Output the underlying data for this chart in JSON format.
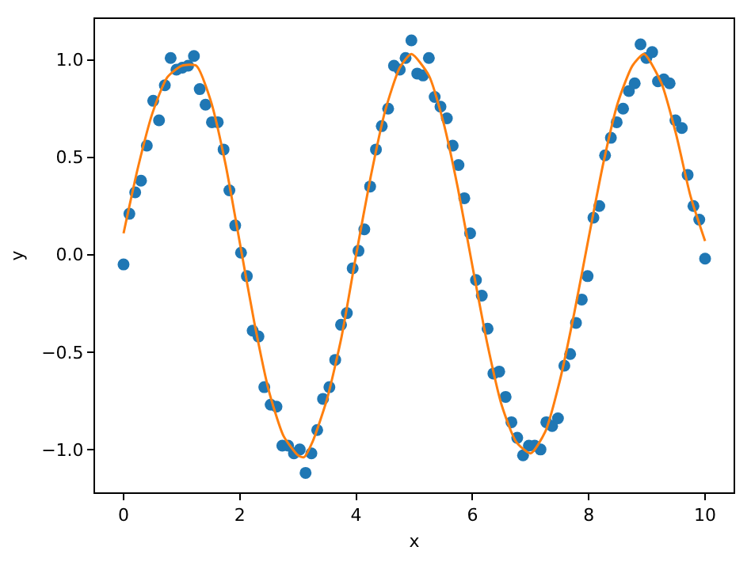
{
  "chart_data": {
    "type": "scatter",
    "xlabel": "x",
    "ylabel": "y",
    "xlim": [
      -0.49,
      10.49
    ],
    "ylim": [
      -1.22,
      1.21
    ],
    "xticks": [
      0,
      2,
      4,
      6,
      8,
      10
    ],
    "yticks": [
      {
        "value": -1,
        "label": "−1.0"
      },
      {
        "value": -0.5,
        "label": "−0.5"
      },
      {
        "value": 0,
        "label": "0.0"
      },
      {
        "value": 0.5,
        "label": "0.5"
      },
      {
        "value": 1,
        "label": "1.0"
      }
    ],
    "grid": false,
    "series": [
      {
        "type": "scatter",
        "marker": "circle",
        "color": "#1f77b4",
        "x": [
          0,
          0.1,
          0.2,
          0.3,
          0.4,
          0.51,
          0.61,
          0.71,
          0.81,
          0.91,
          1.01,
          1.11,
          1.21,
          1.31,
          1.41,
          1.52,
          1.62,
          1.72,
          1.82,
          1.92,
          2.02,
          2.12,
          2.22,
          2.32,
          2.42,
          2.53,
          2.63,
          2.73,
          2.83,
          2.93,
          3.03,
          3.13,
          3.23,
          3.33,
          3.43,
          3.54,
          3.64,
          3.74,
          3.84,
          3.94,
          4.04,
          4.14,
          4.24,
          4.34,
          4.44,
          4.55,
          4.65,
          4.75,
          4.85,
          4.95,
          5.05,
          5.15,
          5.25,
          5.35,
          5.45,
          5.56,
          5.66,
          5.76,
          5.86,
          5.96,
          6.06,
          6.16,
          6.26,
          6.36,
          6.46,
          6.57,
          6.67,
          6.77,
          6.87,
          6.97,
          7.07,
          7.17,
          7.27,
          7.37,
          7.47,
          7.58,
          7.68,
          7.78,
          7.88,
          7.98,
          8.08,
          8.18,
          8.28,
          8.38,
          8.48,
          8.59,
          8.69,
          8.79,
          8.89,
          8.99,
          9.09,
          9.19,
          9.29,
          9.39,
          9.49,
          9.6,
          9.7,
          9.8,
          9.9,
          10
        ],
        "values": [
          -0.05,
          0.21,
          0.32,
          0.38,
          0.56,
          0.79,
          0.69,
          0.87,
          1.01,
          0.95,
          0.96,
          0.97,
          1.02,
          0.85,
          0.77,
          0.68,
          0.68,
          0.54,
          0.33,
          0.15,
          0.01,
          -0.11,
          -0.39,
          -0.42,
          -0.68,
          -0.77,
          -0.78,
          -0.98,
          -0.98,
          -1.02,
          -1.0,
          -1.12,
          -1.02,
          -0.9,
          -0.74,
          -0.68,
          -0.54,
          -0.36,
          -0.3,
          -0.07,
          0.02,
          0.13,
          0.35,
          0.54,
          0.66,
          0.75,
          0.97,
          0.95,
          1.01,
          1.1,
          0.93,
          0.92,
          1.01,
          0.81,
          0.76,
          0.7,
          0.56,
          0.46,
          0.29,
          0.11,
          -0.13,
          -0.21,
          -0.38,
          -0.61,
          -0.6,
          -0.73,
          -0.86,
          -0.94,
          -1.03,
          -0.98,
          -0.98,
          -1.0,
          -0.86,
          -0.88,
          -0.84,
          -0.57,
          -0.51,
          -0.35,
          -0.23,
          -0.11,
          0.19,
          0.25,
          0.51,
          0.6,
          0.68,
          0.75,
          0.84,
          0.88,
          1.08,
          1.01,
          1.04,
          0.89,
          0.9,
          0.88,
          0.69,
          0.65,
          0.41,
          0.25,
          0.18,
          -0.02
        ]
      },
      {
        "type": "line",
        "marker": "none",
        "line_style": "solid",
        "color": "#ff7f0e",
        "x": [
          0,
          0.25,
          0.5,
          0.75,
          1.0,
          1.25,
          1.5,
          1.75,
          2.0,
          2.25,
          2.5,
          2.75,
          3.0,
          3.1,
          3.25,
          3.5,
          3.75,
          4.0,
          4.25,
          4.5,
          4.75,
          4.95,
          5.25,
          5.5,
          5.75,
          6.0,
          6.25,
          6.5,
          6.75,
          7.0,
          7.25,
          7.5,
          7.75,
          8.0,
          8.25,
          8.5,
          8.75,
          8.95,
          9.25,
          9.5,
          9.75,
          10
        ],
        "values": [
          0.11,
          0.45,
          0.73,
          0.91,
          0.97,
          0.97,
          0.79,
          0.47,
          0.06,
          -0.35,
          -0.7,
          -0.93,
          -1.03,
          -1.04,
          -0.96,
          -0.74,
          -0.42,
          0.0,
          0.4,
          0.74,
          0.96,
          1.03,
          0.92,
          0.68,
          0.34,
          -0.06,
          -0.45,
          -0.77,
          -0.96,
          -1.02,
          -0.91,
          -0.65,
          -0.3,
          0.09,
          0.47,
          0.78,
          0.97,
          1.03,
          0.88,
          0.62,
          0.3,
          0.07
        ]
      }
    ]
  }
}
